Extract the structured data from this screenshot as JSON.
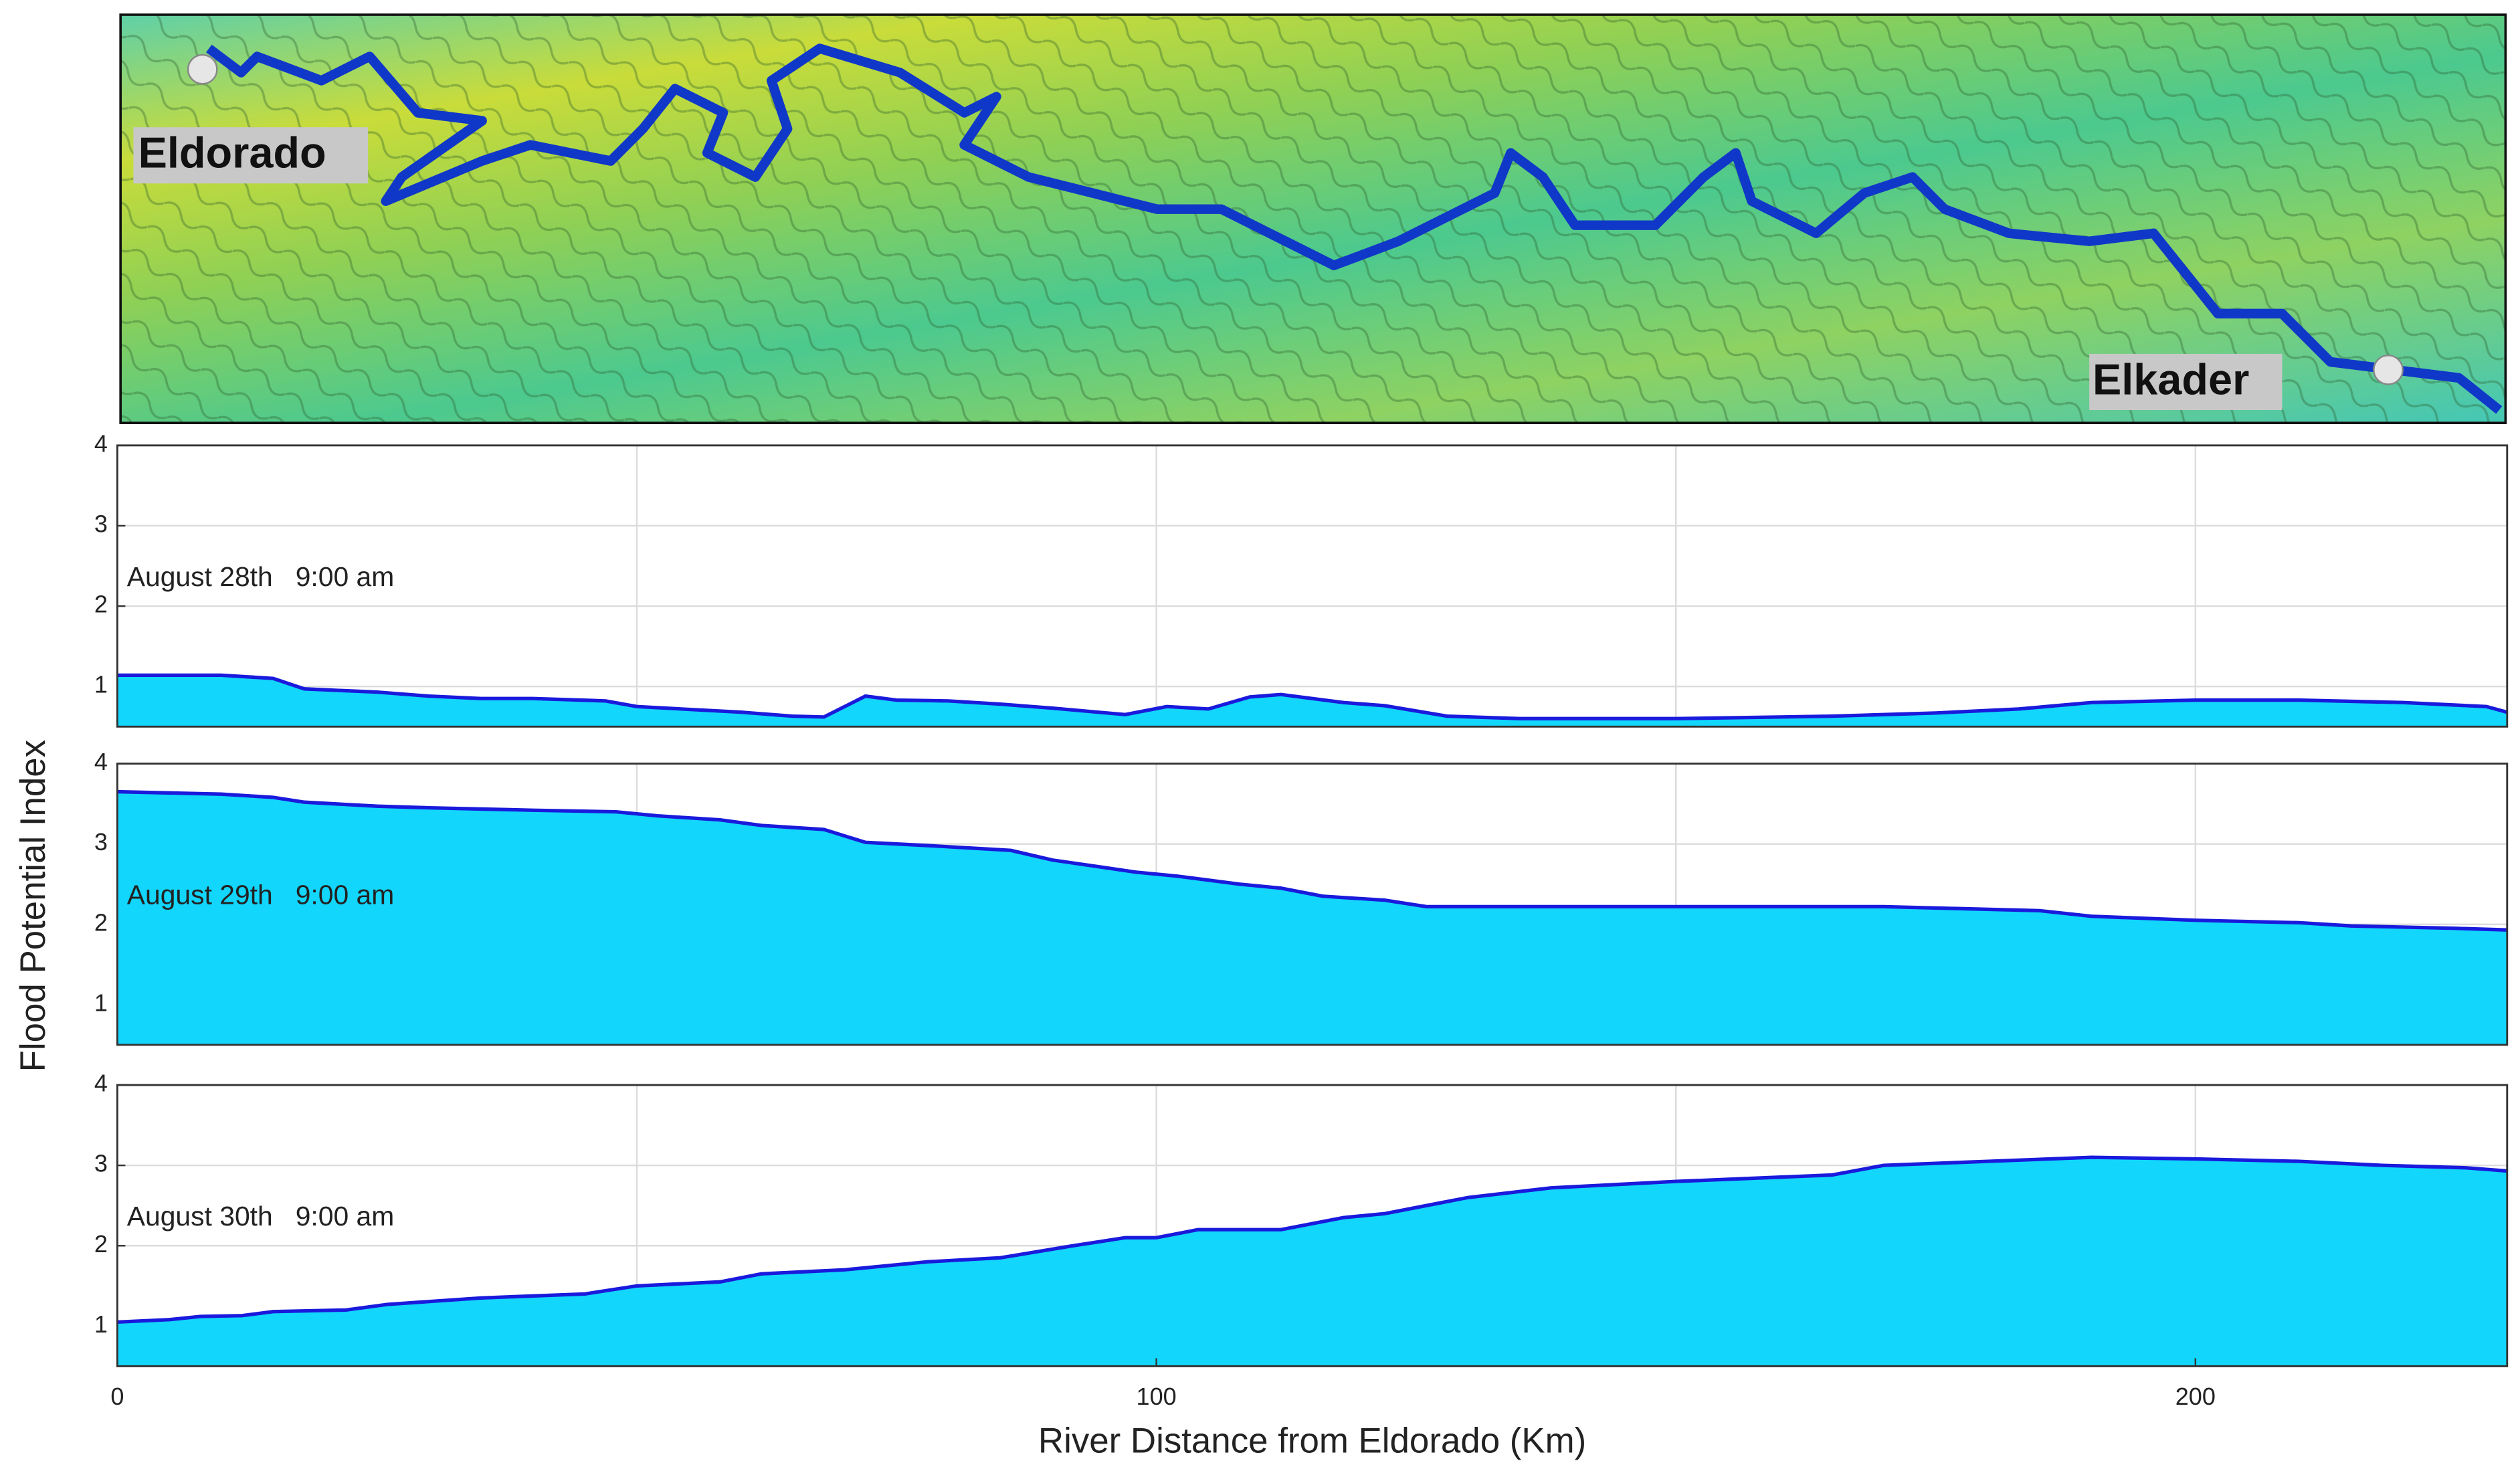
{
  "map": {
    "labels": [
      "Eldorado",
      "Elkader"
    ]
  },
  "chart_data": [
    {
      "type": "area",
      "annotation": "August 28th   9:00 am",
      "color": "#12d6fc",
      "line_color": "#1a1adc",
      "ylim": [
        0.5,
        4
      ],
      "yticks": [
        1,
        2,
        3,
        4
      ],
      "x": [
        0,
        10,
        15,
        18,
        25,
        30,
        35,
        40,
        47,
        50,
        60,
        65,
        68,
        72,
        75,
        80,
        85,
        90,
        97,
        101,
        105,
        109,
        112,
        118,
        122,
        128,
        135,
        150,
        165,
        175,
        183,
        190,
        200,
        210,
        220,
        228,
        230
      ],
      "values": [
        1.14,
        1.14,
        1.1,
        0.97,
        0.93,
        0.88,
        0.85,
        0.85,
        0.82,
        0.75,
        0.68,
        0.63,
        0.62,
        0.88,
        0.83,
        0.82,
        0.78,
        0.73,
        0.65,
        0.75,
        0.72,
        0.87,
        0.9,
        0.8,
        0.76,
        0.63,
        0.6,
        0.6,
        0.63,
        0.67,
        0.72,
        0.8,
        0.83,
        0.83,
        0.8,
        0.75,
        0.68
      ]
    },
    {
      "type": "area",
      "annotation": "August 29th   9:00 am",
      "color": "#12d6fc",
      "line_color": "#1a1adc",
      "ylabel": "Flood Potential Index",
      "ylim": [
        0.5,
        4
      ],
      "yticks": [
        1,
        2,
        3,
        4
      ],
      "x": [
        0,
        10,
        15,
        18,
        25,
        30,
        40,
        48,
        52,
        58,
        62,
        68,
        72,
        78,
        86,
        90,
        98,
        102,
        108,
        112,
        116,
        122,
        126,
        150,
        170,
        185,
        190,
        200,
        210,
        215,
        225,
        230
      ],
      "values": [
        3.65,
        3.62,
        3.58,
        3.52,
        3.47,
        3.45,
        3.42,
        3.4,
        3.35,
        3.3,
        3.23,
        3.18,
        3.02,
        2.98,
        2.92,
        2.8,
        2.65,
        2.6,
        2.5,
        2.45,
        2.35,
        2.3,
        2.22,
        2.22,
        2.22,
        2.17,
        2.1,
        2.05,
        2.02,
        1.98,
        1.95,
        1.93
      ]
    },
    {
      "type": "area",
      "annotation": "August 30th   9:00 am",
      "color": "#12d6fc",
      "line_color": "#1a1adc",
      "xlabel": "River Distance from Eldorado (Km)",
      "xlim": [
        0,
        230
      ],
      "xticks": [
        0,
        100,
        200
      ],
      "xminor": [
        50,
        150
      ],
      "ylim": [
        0.5,
        4
      ],
      "yticks": [
        1,
        2,
        3,
        4
      ],
      "x": [
        0,
        5,
        8,
        12,
        15,
        22,
        26,
        35,
        45,
        50,
        58,
        62,
        70,
        78,
        85,
        92,
        97,
        100,
        104,
        112,
        118,
        122,
        130,
        138,
        150,
        165,
        170,
        180,
        190,
        200,
        210,
        218,
        226,
        230
      ],
      "values": [
        1.05,
        1.08,
        1.12,
        1.13,
        1.18,
        1.2,
        1.27,
        1.35,
        1.4,
        1.5,
        1.55,
        1.65,
        1.7,
        1.8,
        1.85,
        2.0,
        2.1,
        2.1,
        2.2,
        2.2,
        2.35,
        2.4,
        2.6,
        2.72,
        2.8,
        2.88,
        3.0,
        3.05,
        3.1,
        3.08,
        3.05,
        3.0,
        2.97,
        2.93
      ]
    }
  ]
}
